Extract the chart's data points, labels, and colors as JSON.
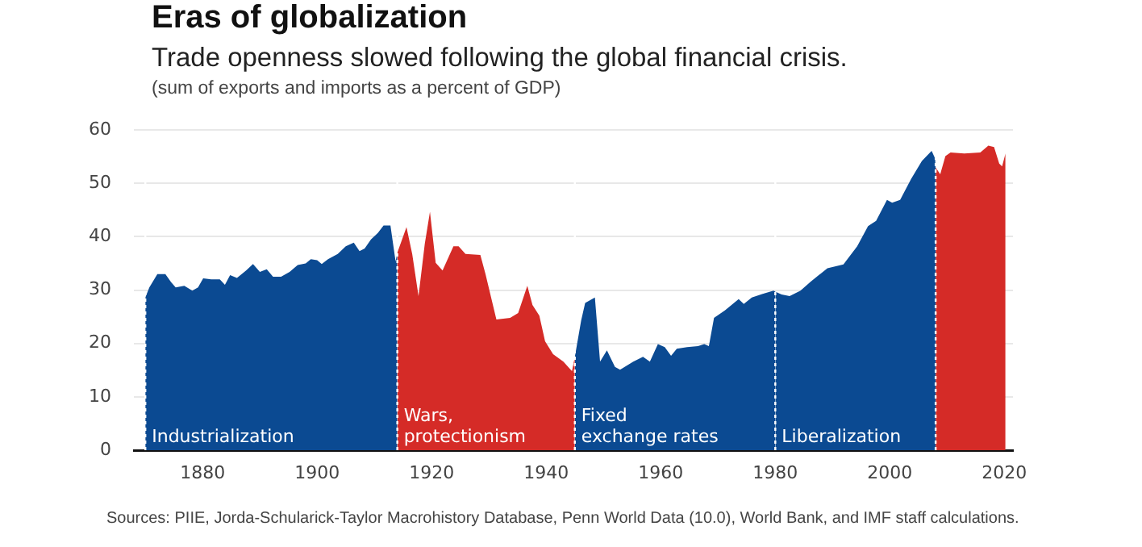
{
  "chart_data": {
    "type": "area",
    "title": "Eras of globalization",
    "subtitle": "Trade openness slowed following the global financial crisis.",
    "ylabel": "(sum of exports and imports as a percent of GDP)",
    "xlim": [
      1868,
      2021.5
    ],
    "xticks": [
      1880,
      1900,
      1920,
      1940,
      1960,
      1980,
      2000,
      2020
    ],
    "ylim": [
      0,
      60
    ],
    "yticks": [
      0,
      10,
      20,
      30,
      40,
      50,
      60
    ],
    "grid": "y",
    "series": [
      {
        "color": "#0b4a92",
        "x": [
          1870,
          1870.7,
          1872.1,
          1873.5,
          1874.5,
          1875.3,
          1876.8,
          1878.2,
          1879.2,
          1880.1,
          1881.5,
          1883,
          1883.9,
          1884.8,
          1886,
          1887.6,
          1888.8,
          1890,
          1891.2,
          1892.3,
          1893.7,
          1895.2,
          1896.6,
          1898,
          1898.9,
          1900,
          1900.8,
          1901.9,
          1903.6,
          1905,
          1906.4,
          1907.4,
          1908.3,
          1909.4,
          1910.6,
          1911.6,
          1912.8,
          1913.7,
          1914
        ],
        "values": [
          28.6,
          30.5,
          33,
          33,
          31.5,
          30.5,
          30.8,
          29.9,
          30.5,
          32.2,
          32,
          32,
          31,
          32.8,
          32.3,
          33.7,
          34.9,
          33.4,
          33.9,
          32.5,
          32.5,
          33.4,
          34.7,
          35,
          35.8,
          35.6,
          34.9,
          35.8,
          36.8,
          38.2,
          38.9,
          37.3,
          37.8,
          39.5,
          40.7,
          42.1,
          42.1,
          35.4,
          37
        ]
      },
      {
        "color": "#d52b27",
        "x": [
          1914,
          1915.6,
          1916.6,
          1917.7,
          1918.8,
          1919.7,
          1920.7,
          1921.9,
          1923.8,
          1924.7,
          1925.9,
          1928.5,
          1929.4,
          1931.3,
          1933.7,
          1935.1,
          1936.7,
          1937.6,
          1938.8,
          1939.8,
          1941.2,
          1943,
          1944.5,
          1945
        ],
        "values": [
          37,
          41.8,
          36.8,
          28.9,
          38.7,
          44.7,
          35.1,
          33.7,
          38.2,
          38.2,
          36.8,
          36.6,
          33,
          24.5,
          24.8,
          25.7,
          30.8,
          27.2,
          25.2,
          20.4,
          18,
          16.6,
          14.8,
          17.5
        ]
      },
      {
        "color": "#0b4a92",
        "x": [
          1945,
          1946.1,
          1946.8,
          1948.5,
          1949.4,
          1950.6,
          1952,
          1952.9,
          1955.2,
          1956.9,
          1958.1,
          1959.5,
          1960.7,
          1961.8,
          1962.8,
          1964.6,
          1966.5,
          1967.6,
          1968.4,
          1969.3,
          1971.2,
          1973.6,
          1974.5,
          1975.9,
          1977.8,
          1979.7,
          1980
        ],
        "values": [
          17.5,
          24.3,
          27.6,
          28.6,
          16.6,
          18.7,
          15.6,
          15.1,
          16.6,
          17.5,
          16.6,
          19.9,
          19.3,
          17.7,
          19,
          19.3,
          19.5,
          19.9,
          19.5,
          24.8,
          26.2,
          28.3,
          27.4,
          28.6,
          29.3,
          29.9,
          29.7
        ]
      },
      {
        "color": "#0b4a92",
        "x": [
          1980,
          1981.1,
          1982.5,
          1984.4,
          1986.2,
          1989.1,
          1991.9,
          1994.3,
          1996.2,
          1997.6,
          1999.5,
          2000.4,
          2001.8,
          2003.7,
          2005.6,
          2007.3,
          2007.9,
          2008
        ],
        "values": [
          29.7,
          29.2,
          28.9,
          29.9,
          31.6,
          34.1,
          34.8,
          38.2,
          42,
          43,
          46.9,
          46.4,
          46.9,
          50.8,
          54.2,
          56.1,
          54.7,
          53
        ]
      },
      {
        "color": "#d52b27",
        "x": [
          2008,
          2008.8,
          2009.7,
          2010.6,
          2013,
          2015.8,
          2017.2,
          2018.2,
          2019.1,
          2019.6,
          2020.2
        ],
        "values": [
          53,
          51.7,
          55.1,
          55.8,
          55.6,
          55.8,
          57.1,
          56.8,
          53.7,
          53.2,
          55.6
        ]
      }
    ],
    "ref_lines": [
      {
        "axis": "x",
        "value": 1870,
        "label": "Industrialization",
        "color": "#ffffff",
        "line_style": "dotted"
      },
      {
        "axis": "x",
        "value": 1914,
        "label": "Wars,\nprotectionism",
        "color": "#ffffff",
        "line_style": "dotted"
      },
      {
        "axis": "x",
        "value": 1945,
        "label": "Fixed\nexchange rates",
        "color": "#ffffff",
        "line_style": "dotted"
      },
      {
        "axis": "x",
        "value": 1980,
        "label": "Liberalization",
        "color": "#ffffff",
        "line_style": "dotted"
      },
      {
        "axis": "x",
        "value": 2008,
        "color": "#ffffff",
        "line_style": "dotted"
      }
    ],
    "annotations": [
      "Sources: PIIE, Jorda-Schularick-Taylor Macrohistory Database, Penn World Data (10.0), World Bank, and IMF staff calculations."
    ]
  }
}
